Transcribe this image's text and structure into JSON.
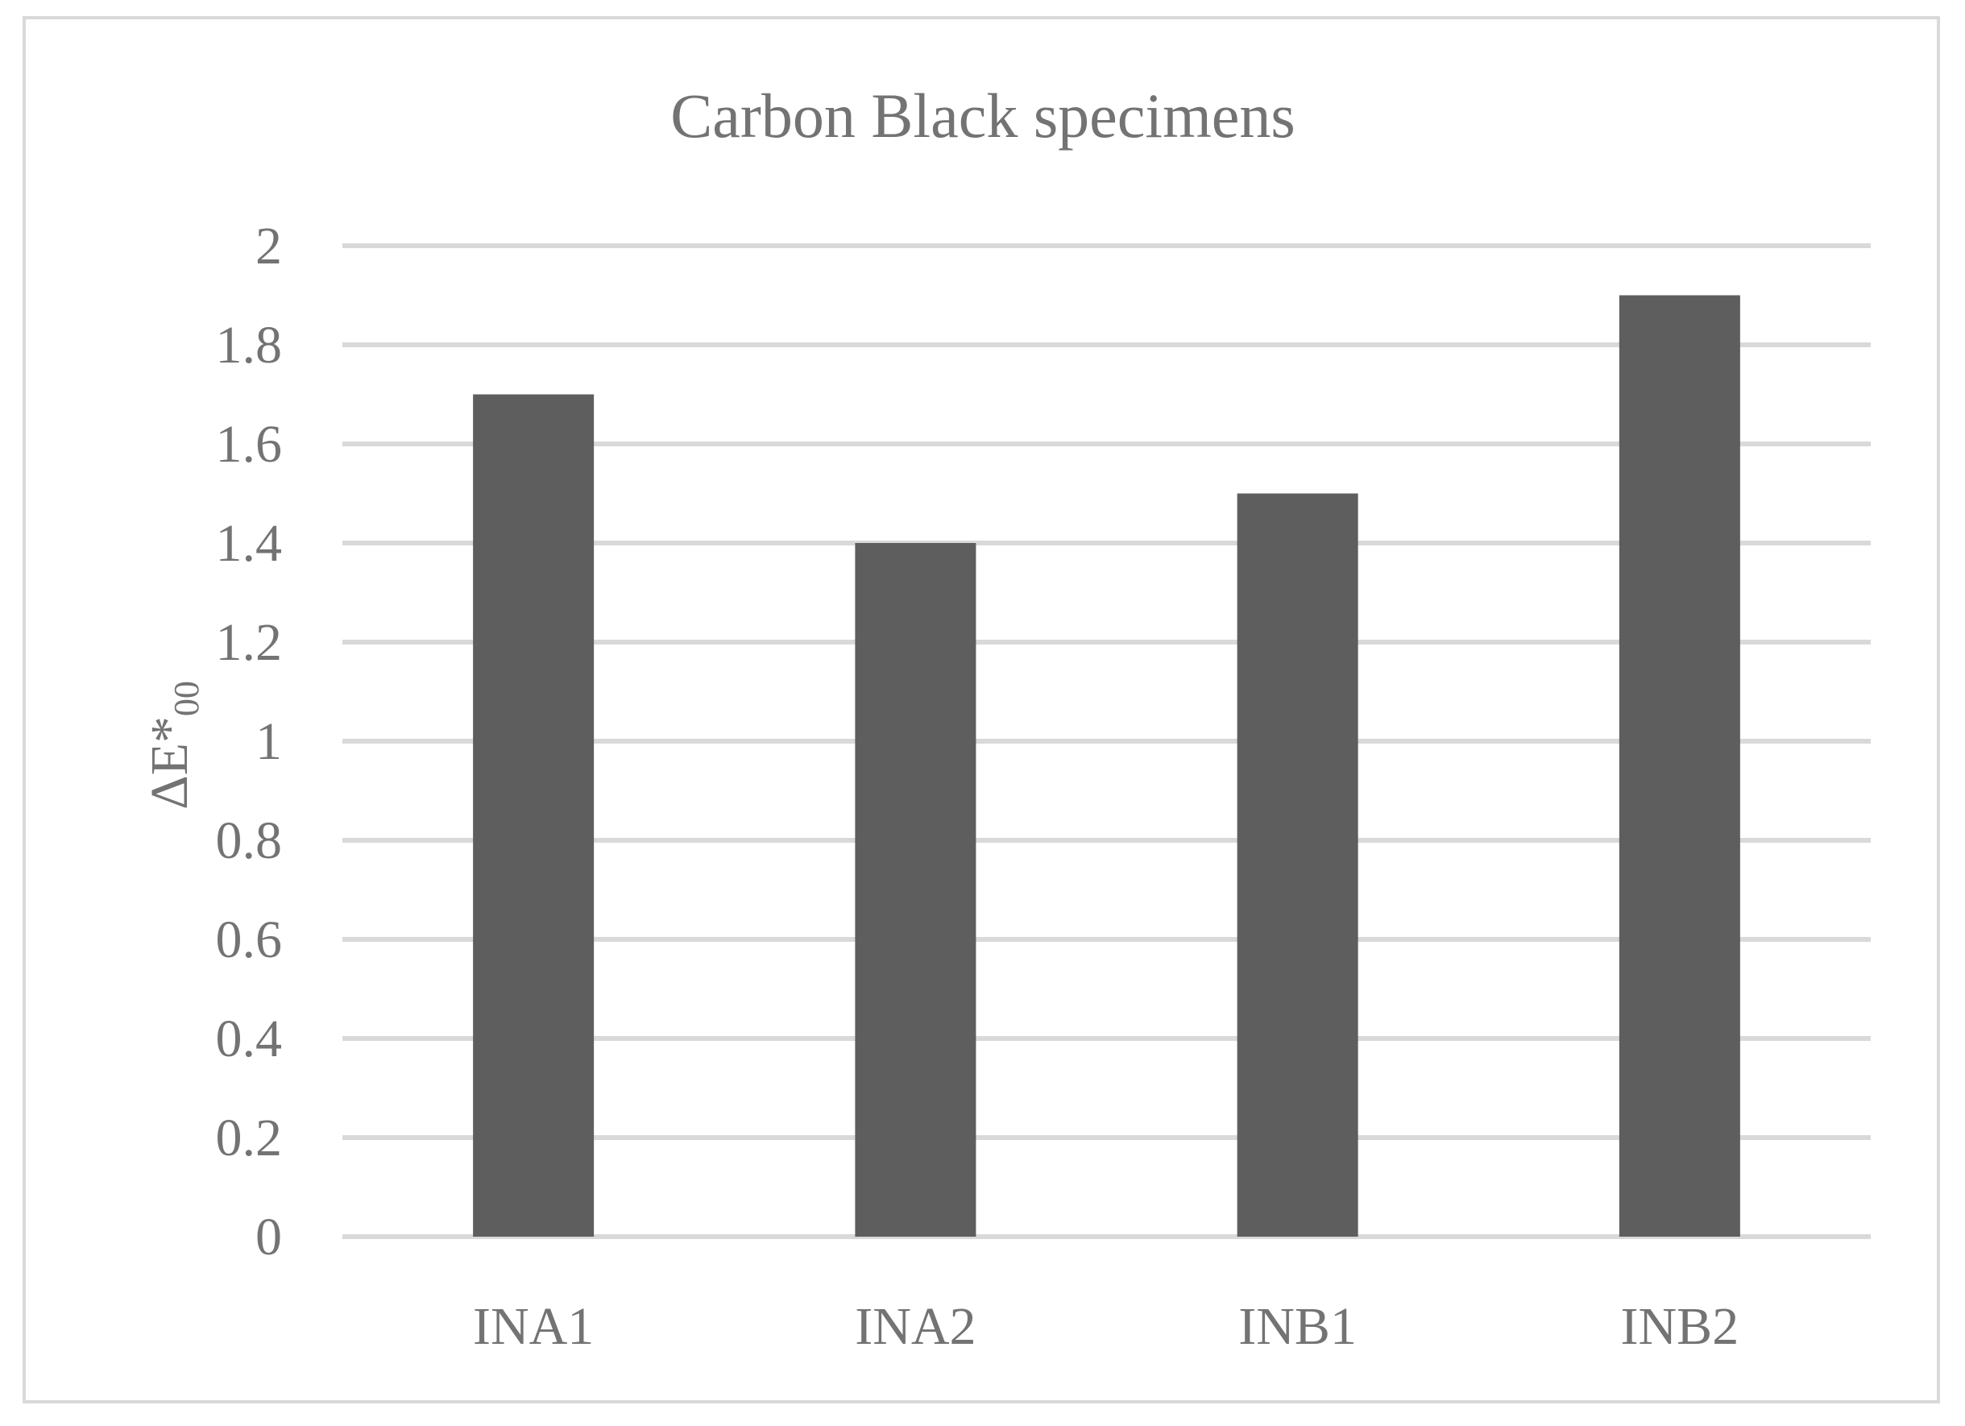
{
  "chart_data": {
    "type": "bar",
    "title": "Carbon Black specimens",
    "categories": [
      "INA1",
      "INA2",
      "INB1",
      "INB2"
    ],
    "series": [
      {
        "values": [
          1.7,
          1.4,
          1.5,
          1.9
        ]
      }
    ],
    "xlabel": "",
    "ylabel": "ΔE*",
    "ylabel_subscript": "00",
    "ylim": [
      0,
      2
    ],
    "yticks": [
      "0",
      "0.2",
      "0.4",
      "0.6",
      "0.8",
      "1",
      "1.2",
      "1.4",
      "1.6",
      "1.8",
      "2"
    ],
    "grid": true,
    "legend": "none",
    "colors": {
      "bar": "#5e5e5e",
      "grid": "#d9d9d9",
      "text": "#737373",
      "frame": "#d9d9d9"
    }
  }
}
